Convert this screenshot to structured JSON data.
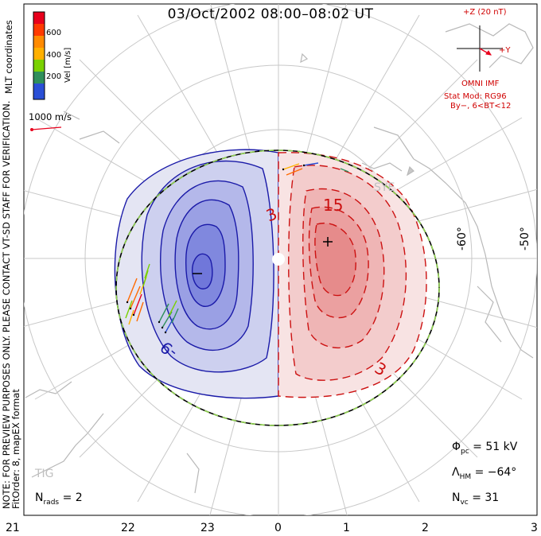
{
  "title": "03/Oct/2002 08:00–08:02 UT",
  "note": {
    "line1": "NOTE: FOR PREVIEW PURPOSES ONLY. PLEASE CONTACT VT-SD STAFF FOR VERIFICATION.",
    "line2": "FitOrder: 8, mapEX format"
  },
  "legend": {
    "coords_label": "MLT coordinates",
    "vel_label": "Vel [m/s]",
    "ticks": [
      "600",
      "400",
      "200"
    ],
    "colors": [
      "#e8001c",
      "#ff6a00",
      "#ffb000",
      "#7ad100",
      "#2f8f5b",
      "#2a4fd6",
      "#1010d0"
    ],
    "ref_vector_label": "1000 m/s"
  },
  "imf": {
    "z_label": "+Z (20 nT)",
    "y_label": "+Y",
    "source": "OMNI IMF",
    "model_line1": "Stat Mod: RG96",
    "model_line2": "By−, 6<BT<12"
  },
  "latitude_labels": [
    "-60°",
    "-50°"
  ],
  "mlt_labels": [
    "21",
    "22",
    "23",
    "0",
    "1",
    "2",
    "3"
  ],
  "contour_labels": [
    "3",
    "15",
    "3",
    "-9"
  ],
  "station_labels": [
    "SYE",
    "TIG"
  ],
  "stats": {
    "phi_pc": "= 51 kV",
    "lambda_hm": "= −64°",
    "n_vc": "= 31",
    "n_rads": "= 2"
  },
  "colors": {
    "negative_cell": "#1a1aa8",
    "positive_cell": "#cc1111",
    "hm_boundary": "#000000",
    "hm_boundary_dash": "#8fd14f"
  }
}
